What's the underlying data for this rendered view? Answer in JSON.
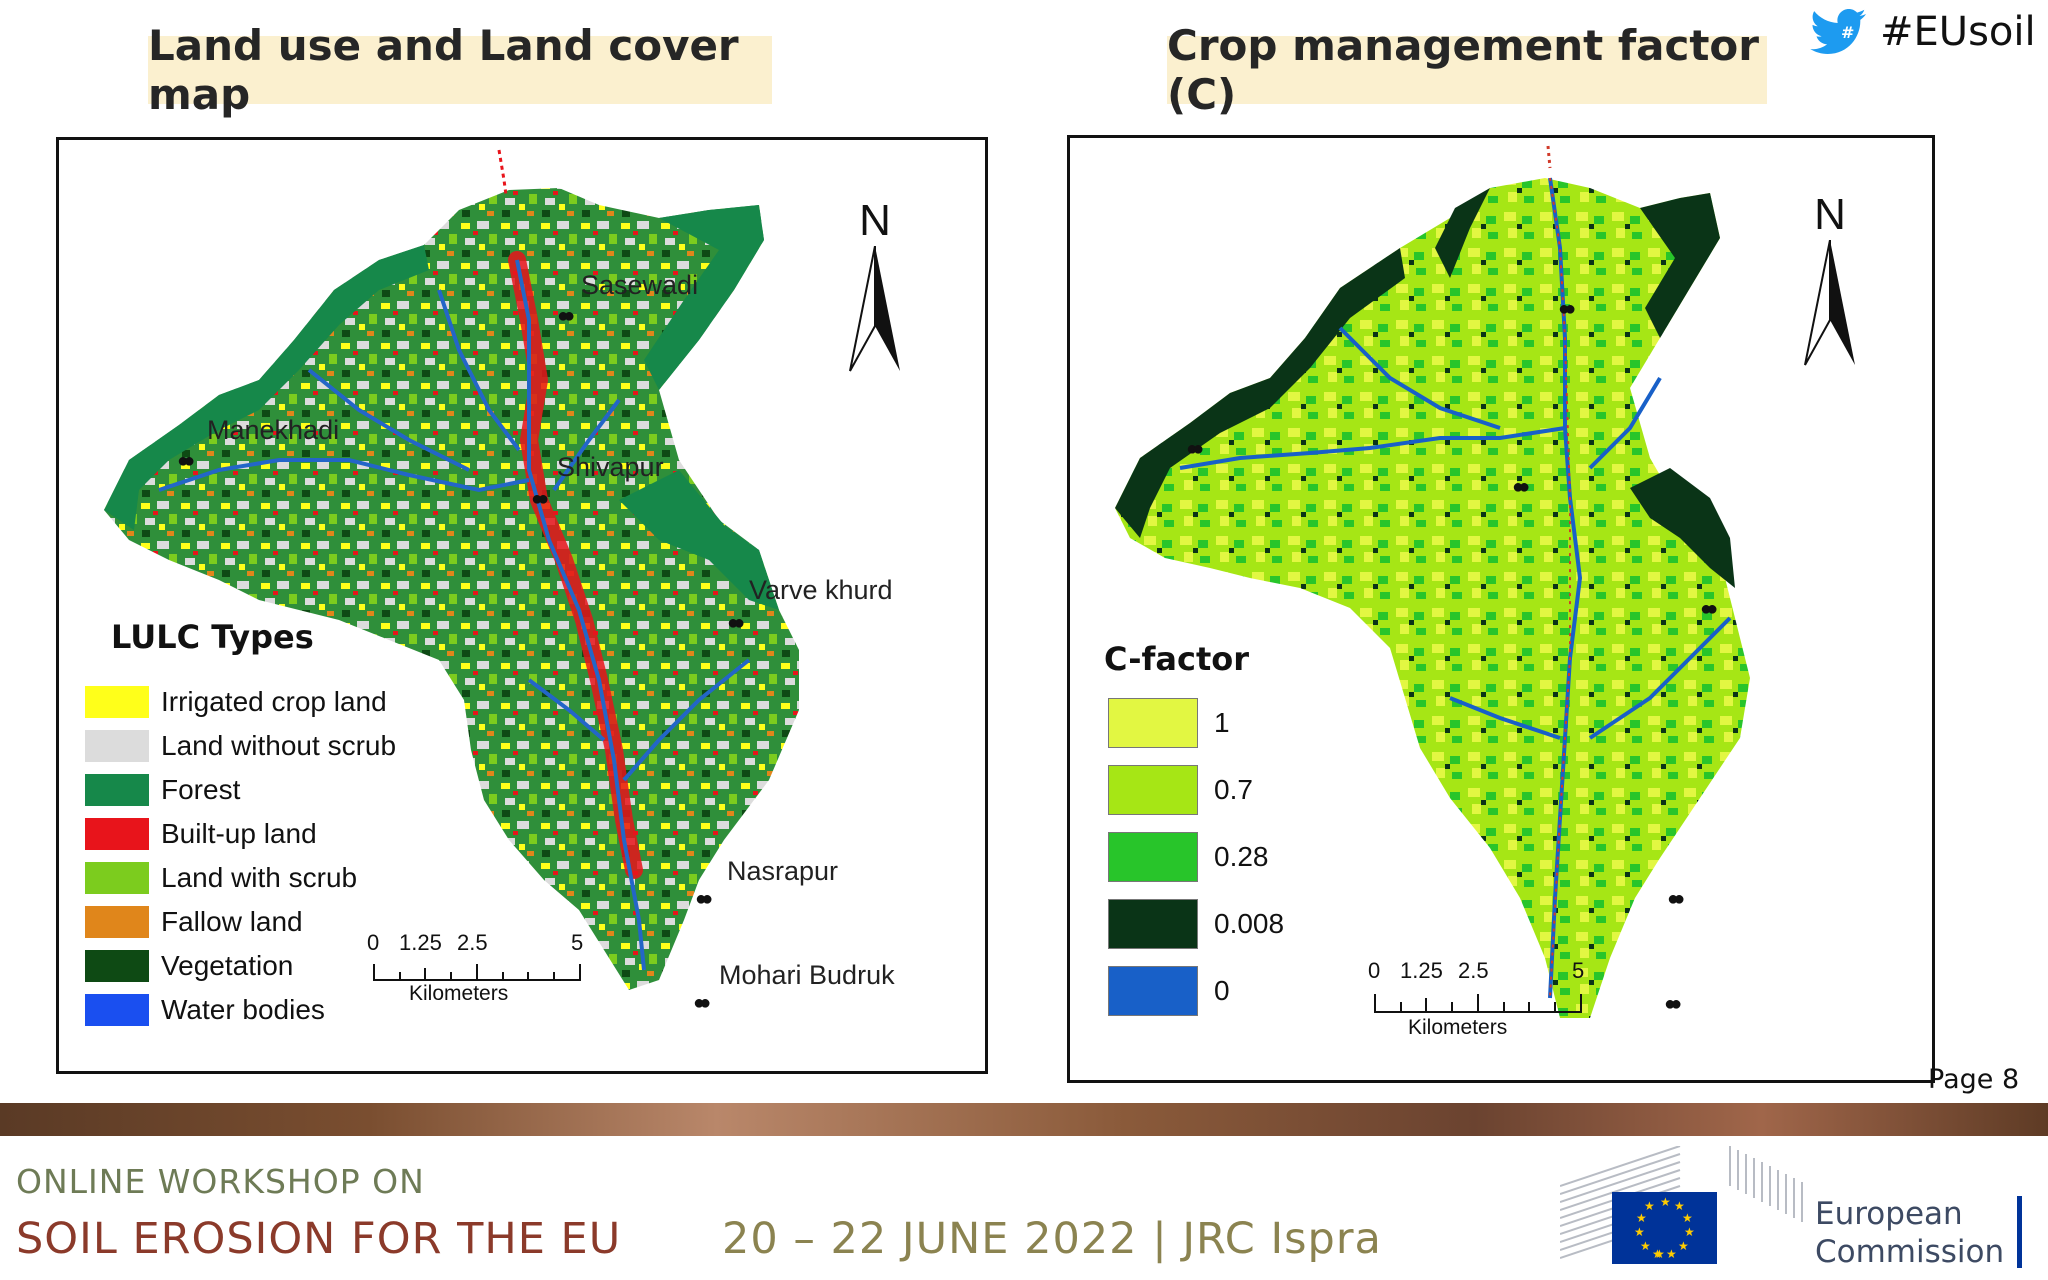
{
  "slide": {
    "title_left": "Land use and Land cover map",
    "title_right": "Crop management factor (C)",
    "hashtag": "#EUsoil",
    "page": "Page 8"
  },
  "left_map": {
    "places": [
      "Sasewadi",
      "Manekhadi",
      "Shivapur",
      "Varve khurd",
      "Nasrapur",
      "Mohari Budruk"
    ],
    "north_label": "N",
    "legend": {
      "title": "LULC Types",
      "items": [
        {
          "label": "Irrigated crop land",
          "color": "#ffff1a"
        },
        {
          "label": "Land without scrub",
          "color": "#dcdcdc"
        },
        {
          "label": "Forest",
          "color": "#16884a"
        },
        {
          "label": "Built-up land",
          "color": "#e8141b"
        },
        {
          "label": "Land with scrub",
          "color": "#7ccc1e"
        },
        {
          "label": "Fallow land",
          "color": "#e0861b"
        },
        {
          "label": "Vegetation",
          "color": "#0e4a14"
        },
        {
          "label": "Water bodies",
          "color": "#1a4ff0"
        }
      ]
    },
    "scale": {
      "ticks": [
        "0",
        "1.25",
        "2.5",
        "5"
      ],
      "units": "Kilometers"
    }
  },
  "right_map": {
    "north_label": "N",
    "legend": {
      "title": "C-factor",
      "items": [
        {
          "label": "1",
          "color": "#e2f742"
        },
        {
          "label": "0.7",
          "color": "#a6e615"
        },
        {
          "label": "0.28",
          "color": "#28c52a"
        },
        {
          "label": "0.008",
          "color": "#0a3417"
        },
        {
          "label": "0",
          "color": "#1860c8"
        }
      ]
    },
    "scale": {
      "ticks": [
        "0",
        "1.25",
        "2.5",
        "5"
      ],
      "units": "Kilometers"
    }
  },
  "footer": {
    "line1": "ONLINE WORKSHOP ON",
    "line2": "SOIL EROSION FOR THE EU",
    "date": "20 – 22 JUNE 2022 | JRC Ispra",
    "ec_line1": "European",
    "ec_line2": "Commission"
  }
}
